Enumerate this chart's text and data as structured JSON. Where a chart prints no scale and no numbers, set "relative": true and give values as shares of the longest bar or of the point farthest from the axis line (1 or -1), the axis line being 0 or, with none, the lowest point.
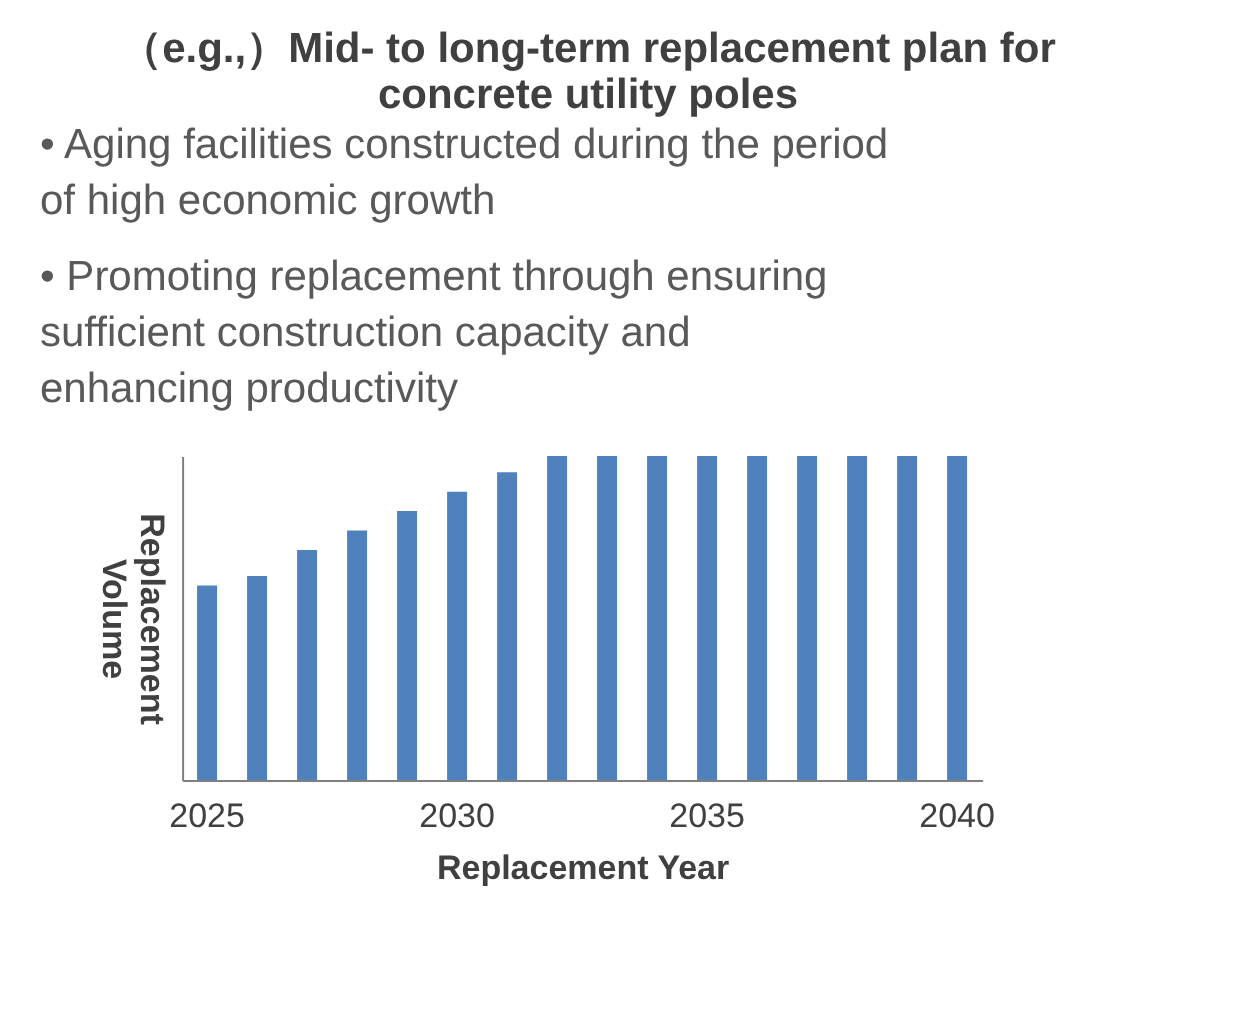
{
  "chart_data": {
    "type": "bar",
    "title": "（e.g.,）Mid- to long-term replacement plan for concrete utility poles",
    "annotations": [
      "• Aging facilities constructed during the period of high economic growth",
      "• Promoting replacement through ensuring sufficient construction capacity and enhancing productivity"
    ],
    "categories": [
      "2025",
      null,
      null,
      null,
      null,
      "2030",
      null,
      null,
      null,
      null,
      "2035",
      null,
      null,
      null,
      null,
      "2040"
    ],
    "values": [
      0.6,
      0.63,
      0.71,
      0.77,
      0.83,
      0.89,
      0.95,
      1,
      1,
      1,
      1,
      1,
      1,
      1,
      1,
      1
    ],
    "color": "#4f81bd",
    "relative": true,
    "xlabel": "Replacement Year",
    "ylabel": "Replacement Volume",
    "grid": false
  }
}
